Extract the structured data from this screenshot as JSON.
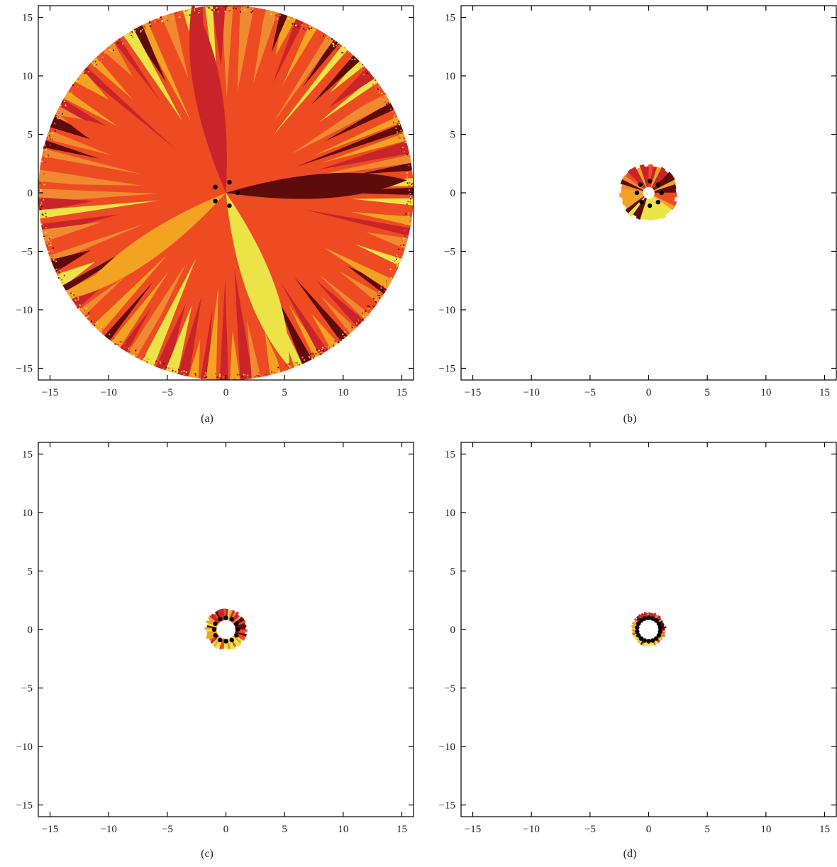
{
  "figure": {
    "panels": [
      "(a)",
      "(b)",
      "(c)",
      "(d)"
    ]
  },
  "colors": {
    "palette": [
      "#5e0b0b",
      "#c8242a",
      "#ee4b22",
      "#f3a322",
      "#ece447",
      "#f08a30"
    ],
    "roots": "#000000"
  },
  "chart_data": [
    {
      "type": "heatmap",
      "caption": "(a)",
      "xlim": [
        -16,
        16
      ],
      "ylim": [
        -16,
        16
      ],
      "xticks": [
        -15,
        -10,
        -5,
        0,
        5,
        10,
        15
      ],
      "yticks": [
        -15,
        -10,
        -5,
        0,
        5,
        10,
        15
      ],
      "region": {
        "shape": "disk",
        "outer_radius": 16,
        "inner_radius": 0,
        "basins": 5
      },
      "roots": [
        [
          -0.9,
          0.5
        ],
        [
          0.3,
          0.9
        ],
        [
          1.0,
          0.0
        ],
        [
          -0.9,
          -0.7
        ],
        [
          0.3,
          -1.1
        ]
      ]
    },
    {
      "type": "heatmap",
      "caption": "(b)",
      "xlim": [
        -16,
        16
      ],
      "ylim": [
        -16,
        16
      ],
      "xticks": [
        -15,
        -10,
        -5,
        0,
        5,
        10,
        15
      ],
      "yticks": [
        -15,
        -10,
        -5,
        0,
        5,
        10,
        15
      ],
      "region": {
        "shape": "annulus",
        "outer_radius": 2.5,
        "inner_radius": 0.5,
        "basins": 10
      },
      "roots": [
        [
          0.1,
          1.0
        ],
        [
          0.8,
          0.7
        ],
        [
          1.1,
          0.0
        ],
        [
          0.8,
          -0.8
        ],
        [
          0.1,
          -1.1
        ],
        [
          -0.6,
          -0.8
        ],
        [
          -1.0,
          0.0
        ],
        [
          -0.7,
          0.7
        ]
      ]
    },
    {
      "type": "heatmap",
      "caption": "(c)",
      "xlim": [
        -16,
        16
      ],
      "ylim": [
        -16,
        16
      ],
      "xticks": [
        -15,
        -10,
        -5,
        0,
        5,
        10,
        15
      ],
      "yticks": [
        -15,
        -10,
        -5,
        0,
        5,
        10,
        15
      ],
      "region": {
        "shape": "annulus",
        "outer_radius": 1.8,
        "inner_radius": 0.8,
        "basins": 14
      },
      "roots": [
        [
          0.0,
          1.0
        ],
        [
          0.5,
          0.9
        ],
        [
          0.9,
          0.5
        ],
        [
          1.0,
          0.0
        ],
        [
          0.9,
          -0.5
        ],
        [
          0.5,
          -0.9
        ],
        [
          0.0,
          -1.0
        ],
        [
          -0.5,
          -0.9
        ],
        [
          -0.9,
          -0.5
        ],
        [
          -1.0,
          0.0
        ],
        [
          -0.9,
          0.5
        ],
        [
          -0.5,
          0.9
        ]
      ]
    },
    {
      "type": "heatmap",
      "caption": "(d)",
      "xlim": [
        -16,
        16
      ],
      "ylim": [
        -16,
        16
      ],
      "xticks": [
        -15,
        -10,
        -5,
        0,
        5,
        10,
        15
      ],
      "yticks": [
        -15,
        -10,
        -5,
        0,
        5,
        10,
        15
      ],
      "region": {
        "shape": "annulus",
        "outer_radius": 1.5,
        "inner_radius": 0.85,
        "basins": 18
      },
      "roots": [
        [
          0.0,
          1.0
        ],
        [
          0.34,
          0.94
        ],
        [
          0.64,
          0.77
        ],
        [
          0.87,
          0.5
        ],
        [
          0.98,
          0.17
        ],
        [
          0.98,
          -0.17
        ],
        [
          0.87,
          -0.5
        ],
        [
          0.64,
          -0.77
        ],
        [
          0.34,
          -0.94
        ],
        [
          0.0,
          -1.0
        ],
        [
          -0.34,
          -0.94
        ],
        [
          -0.64,
          -0.77
        ],
        [
          -0.87,
          -0.5
        ],
        [
          -0.98,
          -0.17
        ],
        [
          -0.98,
          0.17
        ],
        [
          -0.87,
          0.5
        ],
        [
          -0.64,
          0.77
        ],
        [
          -0.34,
          0.94
        ]
      ]
    }
  ]
}
